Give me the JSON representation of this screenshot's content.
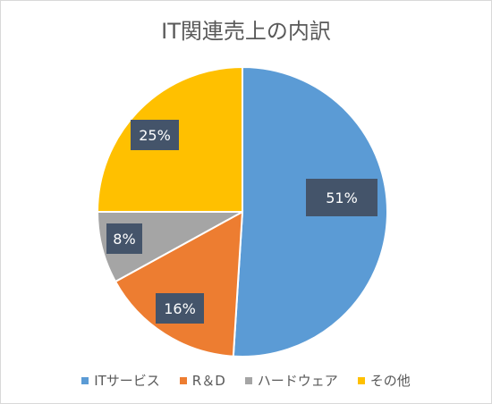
{
  "chart_data": {
    "type": "pie",
    "title": "IT関連売上の内訳",
    "categories": [
      "ITサービス",
      "R＆D",
      "ハードウェア",
      "その他"
    ],
    "values": [
      51,
      16,
      8,
      25
    ],
    "value_labels": [
      "51%",
      "16%",
      "8%",
      "25%"
    ],
    "colors": [
      "#5B9BD5",
      "#ED7D31",
      "#A5A5A5",
      "#FFC000"
    ],
    "label_box_color": "#44546A",
    "legend_position": "bottom"
  }
}
